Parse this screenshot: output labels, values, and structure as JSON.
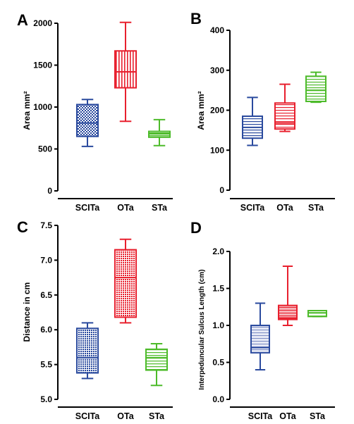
{
  "colors": {
    "SCITa": "#2a4a9e",
    "OTa": "#e8202e",
    "STa": "#4dbb2a"
  },
  "chart_data": [
    {
      "panel": "A",
      "type": "box",
      "ylabel": "Area mm²",
      "ylim": [
        0,
        2000
      ],
      "ticks": [
        0,
        500,
        1000,
        1500,
        2000
      ],
      "categories": [
        "SCITa",
        "OTa",
        "STa"
      ],
      "boxes": [
        {
          "category": "SCITa",
          "min": 530,
          "q1": 650,
          "median": 810,
          "q3": 1030,
          "max": 1090
        },
        {
          "category": "OTa",
          "min": 830,
          "q1": 1230,
          "median": 1420,
          "q3": 1670,
          "max": 2010
        },
        {
          "category": "STa",
          "min": 540,
          "q1": 640,
          "median": 680,
          "q3": 710,
          "max": 850
        }
      ]
    },
    {
      "panel": "B",
      "type": "box",
      "ylabel": "Area mm²",
      "ylim": [
        0,
        400
      ],
      "ticks": [
        0,
        100,
        200,
        300,
        400
      ],
      "categories": [
        "SCITa",
        "OTa",
        "STa"
      ],
      "boxes": [
        {
          "category": "SCITa",
          "min": 112,
          "q1": 130,
          "median": 157,
          "q3": 185,
          "max": 232
        },
        {
          "category": "OTa",
          "min": 147,
          "q1": 153,
          "median": 168,
          "q3": 218,
          "max": 265
        },
        {
          "category": "STa",
          "min": 220,
          "q1": 222,
          "median": 250,
          "q3": 285,
          "max": 295
        }
      ]
    },
    {
      "panel": "C",
      "type": "box",
      "ylabel": "Distance in cm",
      "ylim": [
        5.0,
        7.5
      ],
      "ticks": [
        5.0,
        5.5,
        6.0,
        6.5,
        7.0,
        7.5
      ],
      "categories": [
        "SCITa",
        "OTa",
        "STa"
      ],
      "boxes": [
        {
          "category": "SCITa",
          "min": 5.3,
          "q1": 5.38,
          "median": 5.6,
          "q3": 6.02,
          "max": 6.1
        },
        {
          "category": "OTa",
          "min": 6.1,
          "q1": 6.18,
          "median": 6.75,
          "q3": 7.15,
          "max": 7.3
        },
        {
          "category": "STa",
          "min": 5.2,
          "q1": 5.42,
          "median": 5.6,
          "q3": 5.72,
          "max": 5.8
        }
      ]
    },
    {
      "panel": "D",
      "type": "box",
      "ylabel": "Interpeduncular Sulcus Length (cm)",
      "ylim": [
        0.0,
        2.0
      ],
      "ticks": [
        0.0,
        0.5,
        1.0,
        1.5,
        2.0
      ],
      "categories": [
        "SCITa",
        "OTa",
        "STa"
      ],
      "boxes": [
        {
          "category": "SCITa",
          "min": 0.4,
          "q1": 0.63,
          "median": 0.7,
          "q3": 1.0,
          "max": 1.3
        },
        {
          "category": "OTa",
          "min": 1.0,
          "q1": 1.08,
          "median": 1.1,
          "q3": 1.27,
          "max": 1.8
        },
        {
          "category": "STa",
          "min": 1.12,
          "q1": 1.12,
          "median": 1.17,
          "q3": 1.2,
          "max": 1.2
        }
      ]
    }
  ]
}
